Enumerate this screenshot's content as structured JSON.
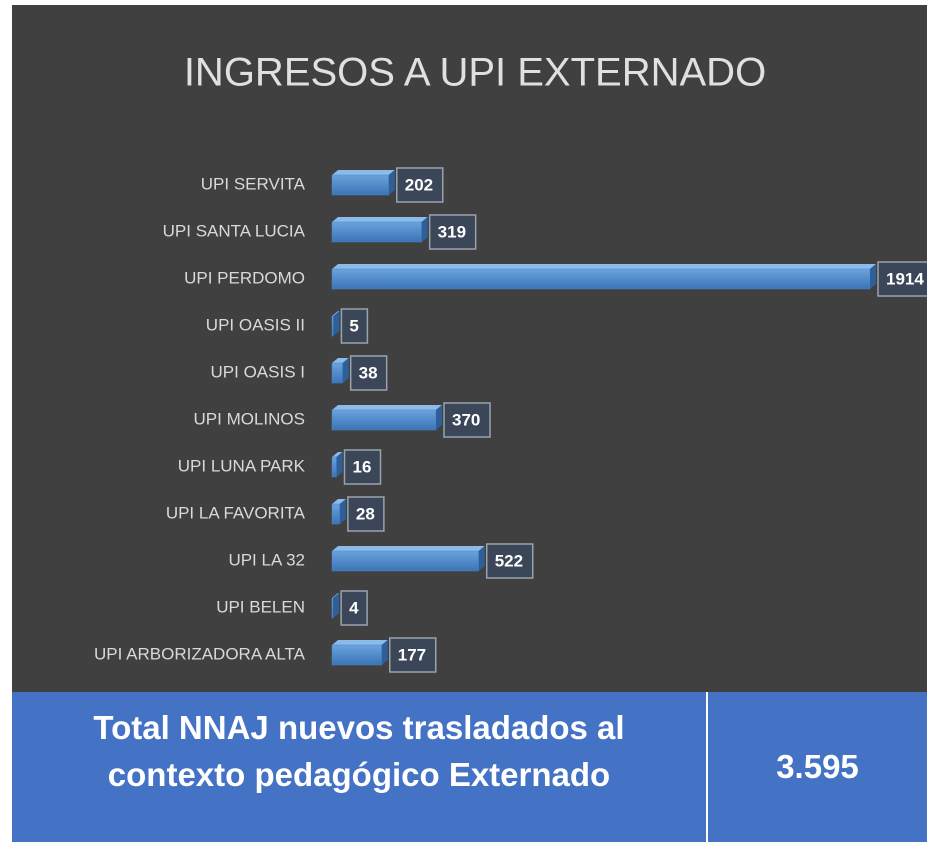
{
  "chart_data": {
    "type": "bar",
    "orientation": "horizontal",
    "title": "INGRESOS A UPI EXTERNADO",
    "categories": [
      "UPI SERVITA",
      "UPI SANTA LUCIA",
      "UPI PERDOMO",
      "UPI OASIS II",
      "UPI OASIS I",
      "UPI MOLINOS",
      "UPI LUNA PARK",
      "UPI LA FAVORITA",
      "UPI LA 32",
      "UPI BELEN",
      "UPI ARBORIZADORA ALTA"
    ],
    "values": [
      202,
      319,
      1914,
      5,
      38,
      370,
      16,
      28,
      522,
      4,
      177
    ],
    "color": "#4a86c8"
  },
  "table": {
    "rows": [
      [
        "Total NNAJ nuevos trasladados al contexto pedagógico Externado",
        "3.595"
      ]
    ]
  }
}
